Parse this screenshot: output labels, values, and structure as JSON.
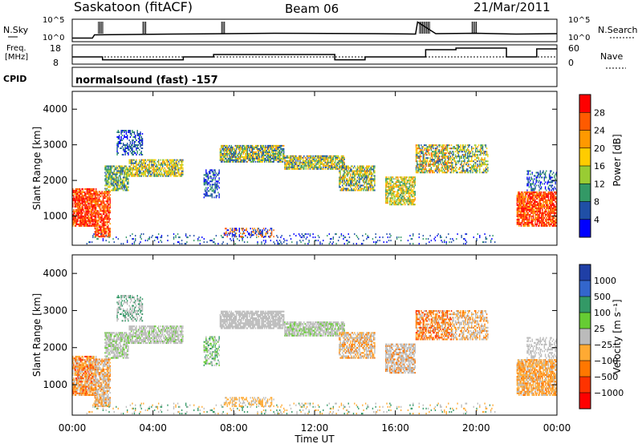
{
  "header": {
    "station": "Saskatoon (fitACF)",
    "beam": "Beam 06",
    "date": "21/Mar/2011"
  },
  "noise_panel": {
    "left_label": "N.Sky",
    "right_label": "N.Search",
    "left_ticks": [
      "10^5",
      "10^0"
    ],
    "right_ticks": [
      "10^5",
      "10^0"
    ]
  },
  "freq_panel": {
    "left_label_1": "Freq.",
    "left_label_2": "[MHz]",
    "left_ticks": [
      "18",
      "8"
    ],
    "right_label": "Nave",
    "right_ticks": [
      "60",
      "0"
    ]
  },
  "cpid": {
    "label": "CPID",
    "value": "normalsound (fast) -157"
  },
  "power_panel": {
    "ylabel": "Slant Range [km]",
    "colorbar_label": "Power [dB]",
    "colorbar_ticks": [
      "28",
      "24",
      "20",
      "16",
      "12",
      "8",
      "4"
    ],
    "colors": [
      "#ff0000",
      "#ff5a00",
      "#ff9900",
      "#ffcc00",
      "#99cc33",
      "#339966",
      "#1f4fa6",
      "#0000ff"
    ]
  },
  "velocity_panel": {
    "ylabel": "Slant Range [km]",
    "colorbar_label": "Velocity [m s⁻¹]",
    "colorbar_ticks": [
      "1000",
      "500",
      "100",
      "25",
      "−25",
      "−100",
      "−500",
      "−1000"
    ],
    "colors": [
      "#1f3fa6",
      "#3366cc",
      "#339966",
      "#66cc33",
      "#bbbbbb",
      "#ffaa33",
      "#ff7700",
      "#ff3300",
      "#ff0000"
    ]
  },
  "xaxis": {
    "label": "Time UT",
    "ticks": [
      "00:00",
      "04:00",
      "08:00",
      "12:00",
      "16:00",
      "20:00",
      "00:00"
    ]
  },
  "chart_data": [
    {
      "type": "line",
      "name": "noise",
      "x": [
        0,
        1,
        1.1,
        5,
        10,
        15,
        17,
        17.1,
        18,
        20,
        22,
        24
      ],
      "y_log10": [
        0.5,
        0.5,
        1.3,
        1.5,
        1.7,
        1.6,
        1.5,
        4.5,
        1.6,
        1.7,
        1.5,
        1.6
      ]
    },
    {
      "type": "line",
      "name": "frequency",
      "ylabel": "Freq. [MHz]",
      "ylim": [
        8,
        18
      ],
      "x": [
        0,
        1.5,
        5.5,
        7,
        13,
        14.5,
        17.5,
        19,
        21.5,
        23,
        24
      ],
      "y": [
        12,
        10.2,
        12,
        13.5,
        10.2,
        12,
        16.5,
        17.5,
        12,
        17,
        17
      ]
    },
    {
      "type": "heatmap",
      "name": "power",
      "ylabel": "Slant Range [km]",
      "ylim": [
        180,
        4500
      ],
      "xlim": [
        0,
        24
      ],
      "colorbar_range": [
        0,
        30
      ]
    },
    {
      "type": "heatmap",
      "name": "velocity",
      "ylabel": "Slant Range [km]",
      "ylim": [
        180,
        4500
      ],
      "xlim": [
        0,
        24
      ],
      "colorbar_range": [
        -1000,
        1000
      ]
    }
  ]
}
